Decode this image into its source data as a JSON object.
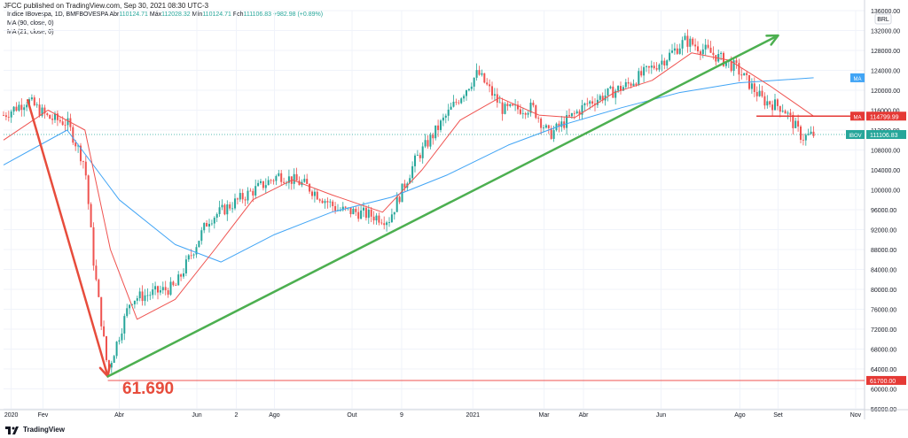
{
  "header": {
    "published": "JFCC published on TradingView.com, Sep 30, 2021 08:30 UTC-3"
  },
  "legend": {
    "symbol": "Índice IBovespa, 1D, BMFBOVESPA",
    "open_label": "Abr",
    "open": "110124.71",
    "high_label": "Máx",
    "high": "112028.32",
    "low_label": "Mín",
    "low": "110124.71",
    "close_label": "Fch",
    "close": "111106.83",
    "change": "+982.98 (+0.89%)",
    "ma1": "MA (90, close, 0)",
    "ma2": "MA (21, close, 0)"
  },
  "footer": {
    "brand": "TradingView"
  },
  "chart_data": {
    "type": "candlestick",
    "currency": "BRL",
    "ylim": [
      56000,
      136000
    ],
    "y_ticks": [
      "136000.00",
      "132000.00",
      "128000.00",
      "124000.00",
      "120000.00",
      "116000.00",
      "112000.00",
      "108000.00",
      "104000.00",
      "100000.00",
      "96000.00",
      "92000.00",
      "88000.00",
      "84000.00",
      "80000.00",
      "76000.00",
      "72000.00",
      "68000.00",
      "64000.00",
      "60000.00",
      "56000.00"
    ],
    "x_ticks": [
      "2020",
      "Fev",
      "Abr",
      "Jun",
      "2",
      "Ago",
      "Out",
      "9",
      "2021",
      "Mar",
      "Abr",
      "Jun",
      "Ago",
      "Set",
      "Nov"
    ],
    "close_series": [
      [
        "2020-01",
        115000
      ],
      [
        "2020-01-20",
        118000
      ],
      [
        "2020-02-05",
        114500
      ],
      [
        "2020-02-20",
        113500
      ],
      [
        "2020-03-05",
        105000
      ],
      [
        "2020-03-12",
        85000
      ],
      [
        "2020-03-23",
        63600
      ],
      [
        "2020-04-10",
        78000
      ],
      [
        "2020-05-15",
        80500
      ],
      [
        "2020-06-10",
        94000
      ],
      [
        "2020-07-10",
        99000
      ],
      [
        "2020-08-05",
        103000
      ],
      [
        "2020-08-25",
        101000
      ],
      [
        "2020-09-20",
        96000
      ],
      [
        "2020-10-05",
        95500
      ],
      [
        "2020-10-30",
        94000
      ],
      [
        "2020-11-20",
        106000
      ],
      [
        "2020-12-20",
        117000
      ],
      [
        "2021-01-08",
        123500
      ],
      [
        "2021-01-28",
        116000
      ],
      [
        "2021-02-20",
        116500
      ],
      [
        "2021-03-05",
        111000
      ],
      [
        "2021-04-05",
        117500
      ],
      [
        "2021-05-05",
        121000
      ],
      [
        "2021-06-05",
        126500
      ],
      [
        "2021-06-20",
        130000
      ],
      [
        "2021-07-10",
        127500
      ],
      [
        "2021-07-30",
        124500
      ],
      [
        "2021-08-20",
        118000
      ],
      [
        "2021-09-05",
        116500
      ],
      [
        "2021-09-20",
        110500
      ],
      [
        "2021-09-29",
        111106.83
      ]
    ],
    "ma21": [
      [
        "2020-01",
        110000
      ],
      [
        "2020-02-05",
        116000
      ],
      [
        "2020-03-05",
        112000
      ],
      [
        "2020-03-25",
        88000
      ],
      [
        "2020-04-15",
        74000
      ],
      [
        "2020-05-15",
        78000
      ],
      [
        "2020-06-15",
        88000
      ],
      [
        "2020-07-15",
        98000
      ],
      [
        "2020-08-15",
        102000
      ],
      [
        "2020-09-15",
        99000
      ],
      [
        "2020-10-25",
        95500
      ],
      [
        "2020-11-25",
        104000
      ],
      [
        "2020-12-25",
        114000
      ],
      [
        "2021-01-25",
        118500
      ],
      [
        "2021-02-25",
        115000
      ],
      [
        "2021-03-25",
        114500
      ],
      [
        "2021-04-25",
        119500
      ],
      [
        "2021-05-25",
        122000
      ],
      [
        "2021-06-25",
        127500
      ],
      [
        "2021-07-25",
        126000
      ],
      [
        "2021-08-25",
        121000
      ],
      [
        "2021-09-29",
        114799.99
      ]
    ],
    "ma90": [
      [
        "2020-01",
        105000
      ],
      [
        "2020-02-20",
        112000
      ],
      [
        "2020-04-01",
        98000
      ],
      [
        "2020-05-15",
        89000
      ],
      [
        "2020-06-20",
        85500
      ],
      [
        "2020-08-01",
        91000
      ],
      [
        "2020-09-15",
        95500
      ],
      [
        "2020-11-01",
        98500
      ],
      [
        "2020-12-15",
        103000
      ],
      [
        "2021-02-01",
        109000
      ],
      [
        "2021-03-15",
        113000
      ],
      [
        "2021-05-01",
        116500
      ],
      [
        "2021-06-15",
        119500
      ],
      [
        "2021-08-01",
        121500
      ],
      [
        "2021-09-29",
        122500
      ]
    ],
    "labels": {
      "ma_upper": "MA",
      "ibov": "IBOV",
      "ibov_value": "111106.83",
      "ma_red": "MA",
      "ma_red_value": "114799.99",
      "low_value": "61700.00",
      "annotation": "61.690"
    },
    "horizontal_lines": [
      {
        "name": "support",
        "value": 61700,
        "color": "#ef5350"
      },
      {
        "name": "resistance",
        "value": 114799.99,
        "color": "#ef5350"
      }
    ],
    "trendlines": [
      {
        "name": "crash-arrow",
        "color": "#e74c3c",
        "from": [
          "2020-01-20",
          118000
        ],
        "to": [
          "2020-03-23",
          62500
        ]
      },
      {
        "name": "uptrend-arrow",
        "color": "#4caf50",
        "from": [
          "2020-03-23",
          62500
        ],
        "to": [
          "2021-09-01",
          131000
        ]
      }
    ],
    "colors": {
      "up": "#26a69a",
      "down": "#ef5350",
      "ma21": "#ef5350",
      "ma90": "#42a5f5",
      "ibov_badge": "#26a69a",
      "ma_badge": "#42a5f5"
    }
  }
}
